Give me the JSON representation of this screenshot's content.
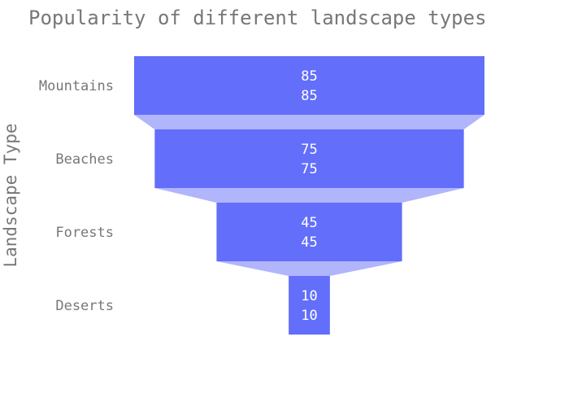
{
  "chart_data": {
    "type": "funnel",
    "title": "Popularity of different landscape types",
    "ylabel": "Landscape Type",
    "xlabel": "",
    "categories": [
      "Mountains",
      "Beaches",
      "Forests",
      "Deserts"
    ],
    "values": [
      85,
      75,
      45,
      10
    ],
    "grid": false,
    "legend": "none",
    "colors": {
      "bar": "#636efa",
      "connector": "#b0b5fc",
      "text": "#777777",
      "value_text": "#ffffff"
    }
  }
}
